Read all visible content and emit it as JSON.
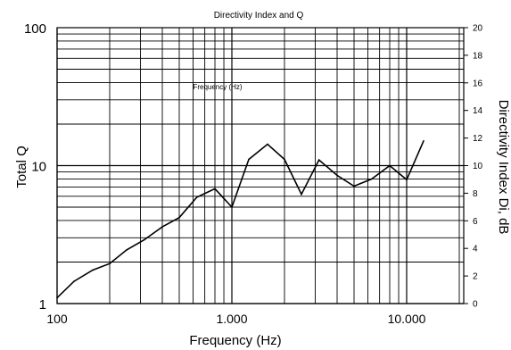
{
  "chart_data": {
    "type": "line",
    "title": "Directivity Index and Q",
    "annotation": "Frequency (Hz)",
    "xlabel": "Frequency (Hz)",
    "ylabel_left": "Total Q",
    "ylabel_right": "Directivity Index Di, dB",
    "x_scale": "log",
    "y_left_scale": "log",
    "xlim": [
      100,
      20000
    ],
    "ylim_left": [
      1,
      100
    ],
    "ylim_right": [
      0,
      20
    ],
    "grid": true,
    "x_tick_labels": [
      {
        "value": 100,
        "label": "100"
      },
      {
        "value": 1000,
        "label": "1.000"
      },
      {
        "value": 10000,
        "label": "10.000"
      }
    ],
    "y_left_tick_labels": [
      {
        "value": 1,
        "label": "1"
      },
      {
        "value": 10,
        "label": "10"
      },
      {
        "value": 100,
        "label": "100"
      }
    ],
    "y_right_tick_labels": [
      {
        "value": 0,
        "label": "0"
      },
      {
        "value": 2,
        "label": "2"
      },
      {
        "value": 4,
        "label": "4"
      },
      {
        "value": 6,
        "label": "6"
      },
      {
        "value": 8,
        "label": "8"
      },
      {
        "value": 10,
        "label": "10"
      },
      {
        "value": 12,
        "label": "12"
      },
      {
        "value": 14,
        "label": "14"
      },
      {
        "value": 16,
        "label": "16"
      },
      {
        "value": 18,
        "label": "18"
      },
      {
        "value": 20,
        "label": "20"
      }
    ],
    "series": [
      {
        "axis": "left",
        "color": "#000000",
        "x": [
          100,
          125,
          160,
          200,
          250,
          315,
          400,
          500,
          630,
          800,
          1000,
          1250,
          1600,
          2000,
          2500,
          3150,
          4000,
          5000,
          6300,
          8000,
          10000,
          12500
        ],
        "y": [
          1.1,
          1.45,
          1.75,
          1.95,
          2.45,
          2.9,
          3.6,
          4.2,
          5.9,
          6.8,
          5.0,
          11.1,
          14.3,
          11.1,
          6.2,
          11.0,
          8.5,
          7.1,
          8.0,
          10.0,
          7.9,
          15.1
        ]
      }
    ]
  }
}
